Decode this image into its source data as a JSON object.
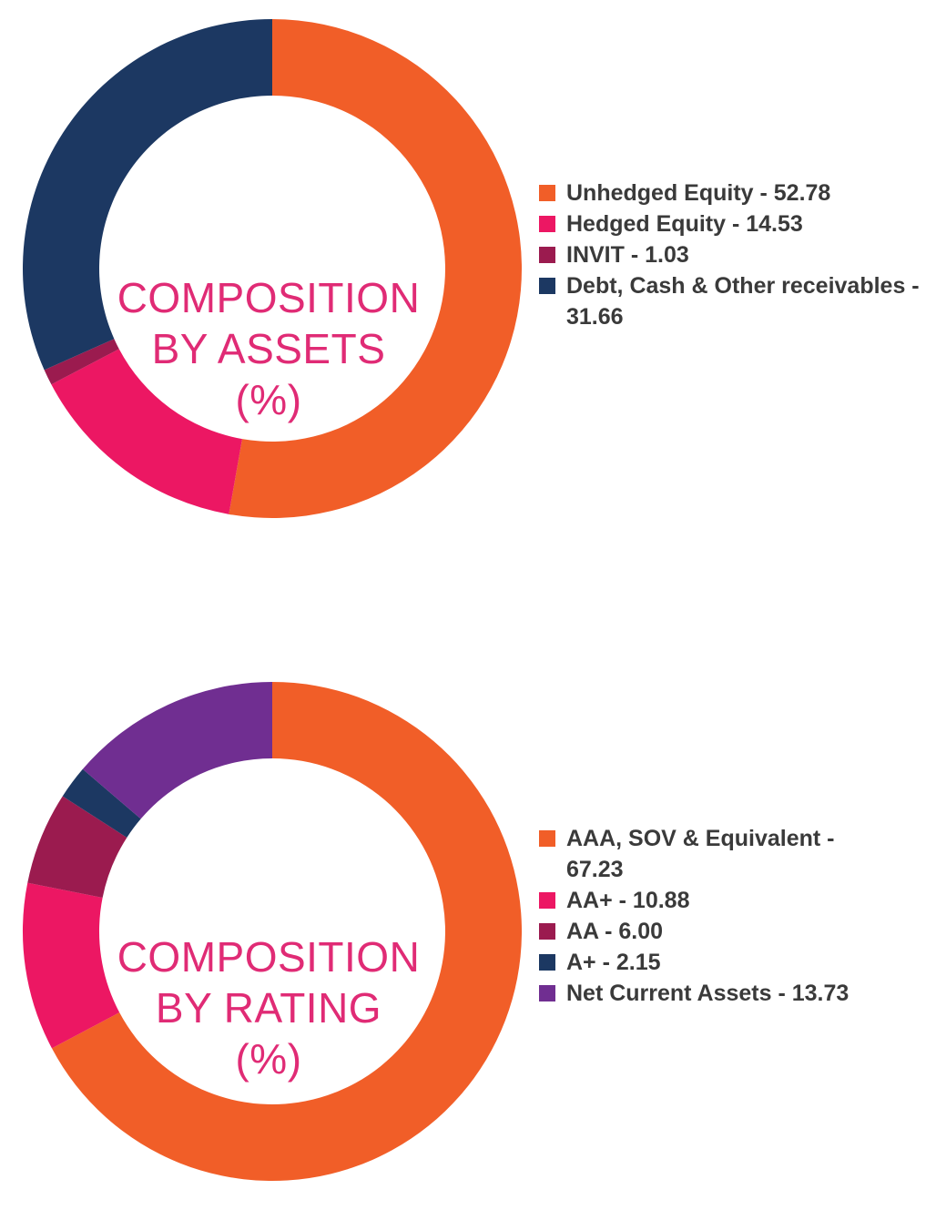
{
  "chart_data": [
    {
      "type": "pie",
      "title": "COMPOSITION BY ASSETS (%)",
      "title_lines": [
        "COMPOSITION",
        "BY ASSETS",
        "(%)"
      ],
      "legend_position": "right",
      "slices": [
        {
          "label": "Unhedged Equity - 52.78",
          "value": 52.78,
          "color": "#f15e28"
        },
        {
          "label": "Hedged Equity - 14.53",
          "value": 14.53,
          "color": "#ec1763"
        },
        {
          "label": "INVIT - 1.03",
          "value": 1.03,
          "color": "#9b1b4f"
        },
        {
          "label": "Debt, Cash & Other receivables - 31.66",
          "value": 31.66,
          "color": "#1c3862"
        }
      ]
    },
    {
      "type": "pie",
      "title": "COMPOSITION BY RATING (%)",
      "title_lines": [
        "COMPOSITION",
        "BY RATING",
        "(%)"
      ],
      "legend_position": "right",
      "slices": [
        {
          "label": "AAA, SOV & Equivalent - 67.23",
          "value": 67.23,
          "color": "#f15e28"
        },
        {
          "label": "AA+ - 10.88",
          "value": 10.88,
          "color": "#ec1763"
        },
        {
          "label": "AA - 6.00",
          "value": 6.0,
          "color": "#9b1b4f"
        },
        {
          "label": "A+ - 2.15",
          "value": 2.15,
          "color": "#1c3862"
        },
        {
          "label": "Net Current Assets - 13.73",
          "value": 13.73,
          "color": "#702e91"
        }
      ]
    }
  ]
}
